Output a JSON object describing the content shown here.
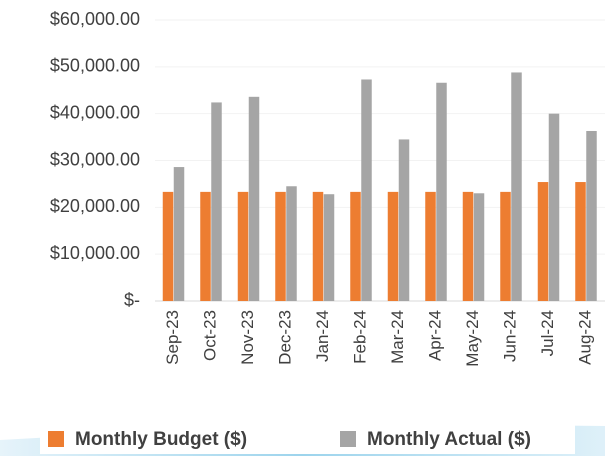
{
  "chart_data": {
    "type": "bar",
    "categories": [
      "Sep-23",
      "Oct-23",
      "Nov-23",
      "Dec-23",
      "Jan-24",
      "Feb-24",
      "Mar-24",
      "Apr-24",
      "May-24",
      "Jun-24",
      "Jul-24",
      "Aug-24"
    ],
    "series": [
      {
        "name": "Monthly Budget ($)",
        "color": "#ed7d31",
        "values": [
          23300,
          23300,
          23300,
          23300,
          23300,
          23300,
          23300,
          23300,
          23300,
          23300,
          25400,
          25400
        ]
      },
      {
        "name": "Monthly Actual ($)",
        "color": "#a5a5a5",
        "values": [
          28600,
          42400,
          43600,
          24500,
          22800,
          47300,
          34500,
          46600,
          23000,
          48800,
          40000,
          36300
        ]
      }
    ],
    "ylim": [
      0,
      60000
    ],
    "yticks": [
      {
        "value": 0,
        "label": "$-"
      },
      {
        "value": 10000,
        "label": "$10,000.00"
      },
      {
        "value": 20000,
        "label": "$20,000.00"
      },
      {
        "value": 30000,
        "label": "$30,000.00"
      },
      {
        "value": 40000,
        "label": "$40,000.00"
      },
      {
        "value": 50000,
        "label": "$50,000.00"
      },
      {
        "value": 60000,
        "label": "$60,000.00"
      }
    ],
    "legend": "bottom"
  }
}
